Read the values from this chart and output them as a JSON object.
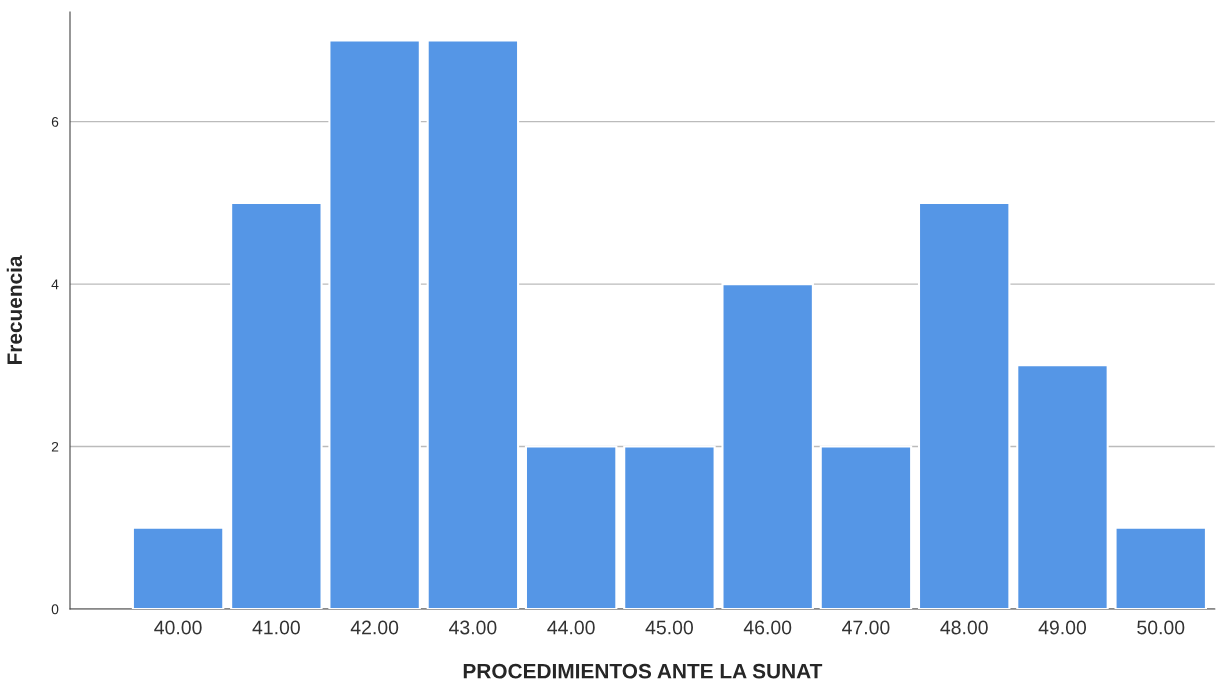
{
  "chart_data": {
    "type": "bar",
    "xlabel": "PROCEDIMIENTOS ANTE LA SUNAT",
    "ylabel": "Frecuencia",
    "categories": [
      "40.00",
      "41.00",
      "42.00",
      "43.00",
      "44.00",
      "45.00",
      "46.00",
      "47.00",
      "48.00",
      "49.00",
      "50.00"
    ],
    "values": [
      1,
      5,
      7,
      7,
      2,
      2,
      4,
      2,
      5,
      3,
      1
    ],
    "color": "#5596e6",
    "ylim": [
      0,
      7.35
    ],
    "yticks": [
      0,
      2,
      4,
      6
    ],
    "grid": "y"
  }
}
